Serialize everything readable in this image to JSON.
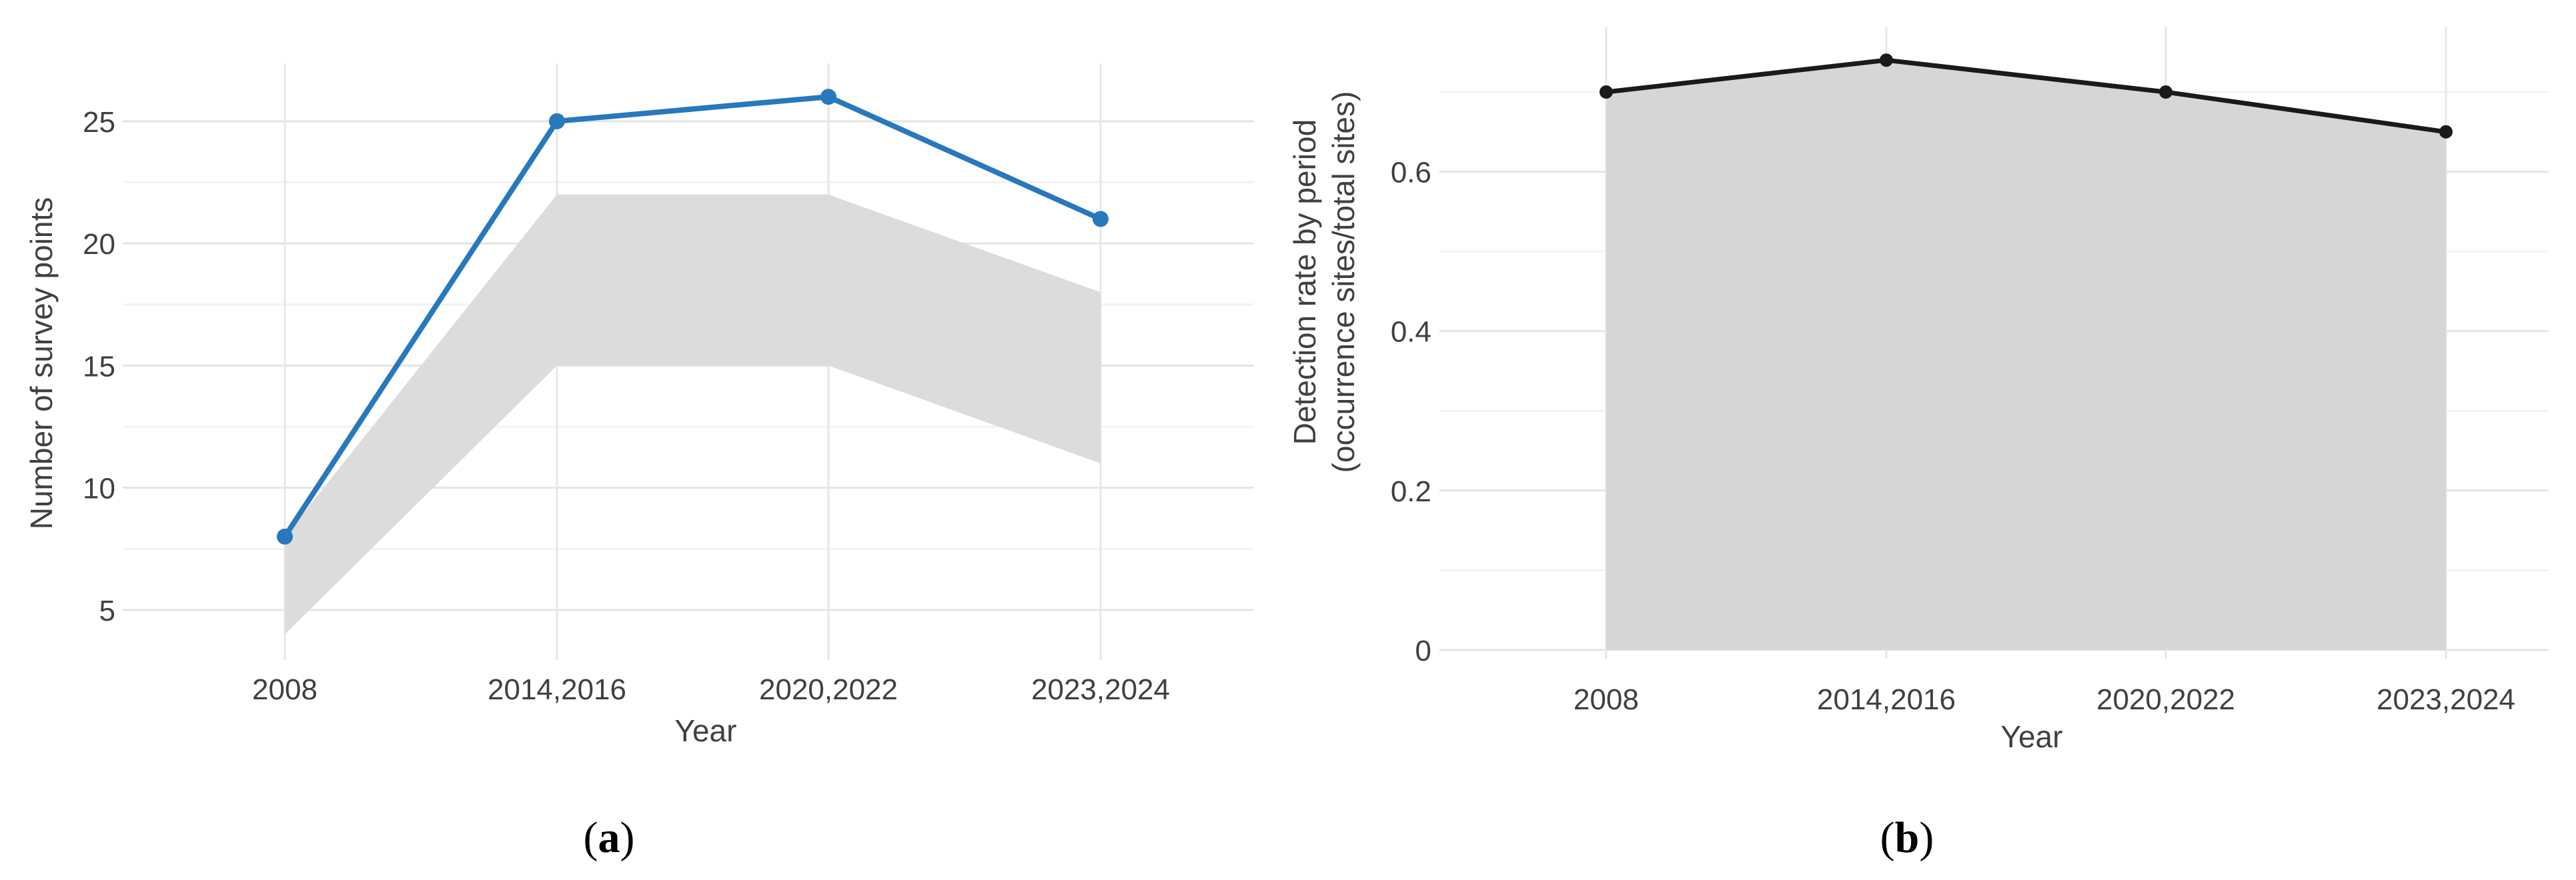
{
  "figure": {
    "background": "#ffffff",
    "captions": [
      {
        "prefix": "(",
        "label": "a",
        "suffix": ")"
      },
      {
        "prefix": "(",
        "label": "b",
        "suffix": ")"
      }
    ]
  },
  "chart_data": [
    {
      "id": "a",
      "type": "line",
      "categories": [
        "2008",
        "2014,2016",
        "2020,2022",
        "2023,2024"
      ],
      "series": [
        {
          "name": "Number of survey points",
          "values": [
            8,
            25,
            26,
            21
          ]
        }
      ],
      "band": {
        "name": "survey-point-range-ribbon",
        "upper": [
          8,
          22,
          22,
          18
        ],
        "lower": [
          4,
          15,
          15,
          11
        ]
      },
      "xlabel": "Year",
      "ylabel": "Number of survey points",
      "ylim": [
        2.95,
        27.37
      ],
      "yticks_major": [
        5,
        10,
        15,
        20,
        25
      ],
      "ytick_labels": [
        "5",
        "10",
        "15",
        "20",
        "25"
      ],
      "yticks_minor": [
        7.5,
        12.5,
        17.5,
        22.5
      ],
      "grid": "major+minor, vertical per category, no axis lines",
      "legend": "none",
      "line_color": "#2878bc",
      "band_color": "#dcdcdc",
      "marker": "circle"
    },
    {
      "id": "b",
      "type": "area",
      "categories": [
        "2008",
        "2014,2016",
        "2020,2022",
        "2023,2024"
      ],
      "series": [
        {
          "name": "Detection rate by period",
          "values": [
            0.7,
            0.74,
            0.7,
            0.65
          ]
        }
      ],
      "xlabel": "Year",
      "ylabel_lines": [
        "Detection rate by period",
        "(occurrence sites/total sites)"
      ],
      "ylim": [
        -0.011,
        0.782
      ],
      "area_baseline": 0,
      "yticks_major": [
        0,
        0.2,
        0.4,
        0.6
      ],
      "ytick_labels": [
        "0",
        "0.2",
        "0.4",
        "0.6"
      ],
      "yticks_minor": [
        0.1,
        0.3,
        0.5,
        0.7
      ],
      "grid": "major+minor, vertical per category, no axis lines",
      "legend": "none",
      "line_color": "#1a1a1a",
      "area_color": "#d6d6d6",
      "marker": "circle"
    }
  ]
}
